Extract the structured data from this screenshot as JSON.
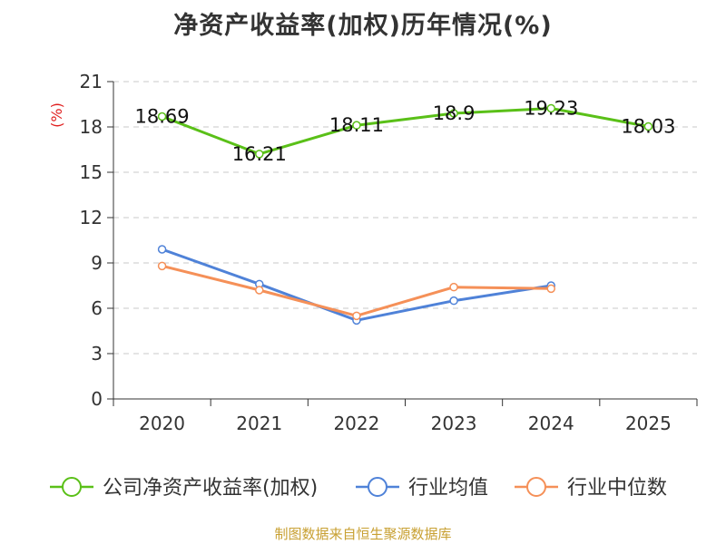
{
  "chart_data": {
    "type": "line",
    "title": "净资产收益率(加权)历年情况(%)",
    "ylabel": "(%)",
    "xlabel": "",
    "categories": [
      "2020",
      "2021",
      "2022",
      "2023",
      "2024",
      "2025"
    ],
    "ylim": [
      0,
      21
    ],
    "yticks": [
      0,
      3,
      6,
      9,
      12,
      15,
      18,
      21
    ],
    "grid": true,
    "legend_position": "bottom",
    "series": [
      {
        "name": "公司净资产收益率(加权)",
        "color": "#5ac018",
        "values": [
          18.69,
          16.21,
          18.11,
          18.9,
          19.23,
          18.03
        ],
        "labels": [
          "18.69",
          "16.21",
          "18.11",
          "18.9",
          "19.23",
          "18.03"
        ],
        "show_labels": true
      },
      {
        "name": "行业均值",
        "color": "#4f82d8",
        "values": [
          9.9,
          7.6,
          5.2,
          6.5,
          7.5,
          null
        ],
        "show_labels": false
      },
      {
        "name": "行业中位数",
        "color": "#f59058",
        "values": [
          8.8,
          7.2,
          5.5,
          7.4,
          7.3,
          null
        ],
        "show_labels": false
      }
    ]
  },
  "footer": {
    "source": "制图数据来自恒生聚源数据库"
  }
}
